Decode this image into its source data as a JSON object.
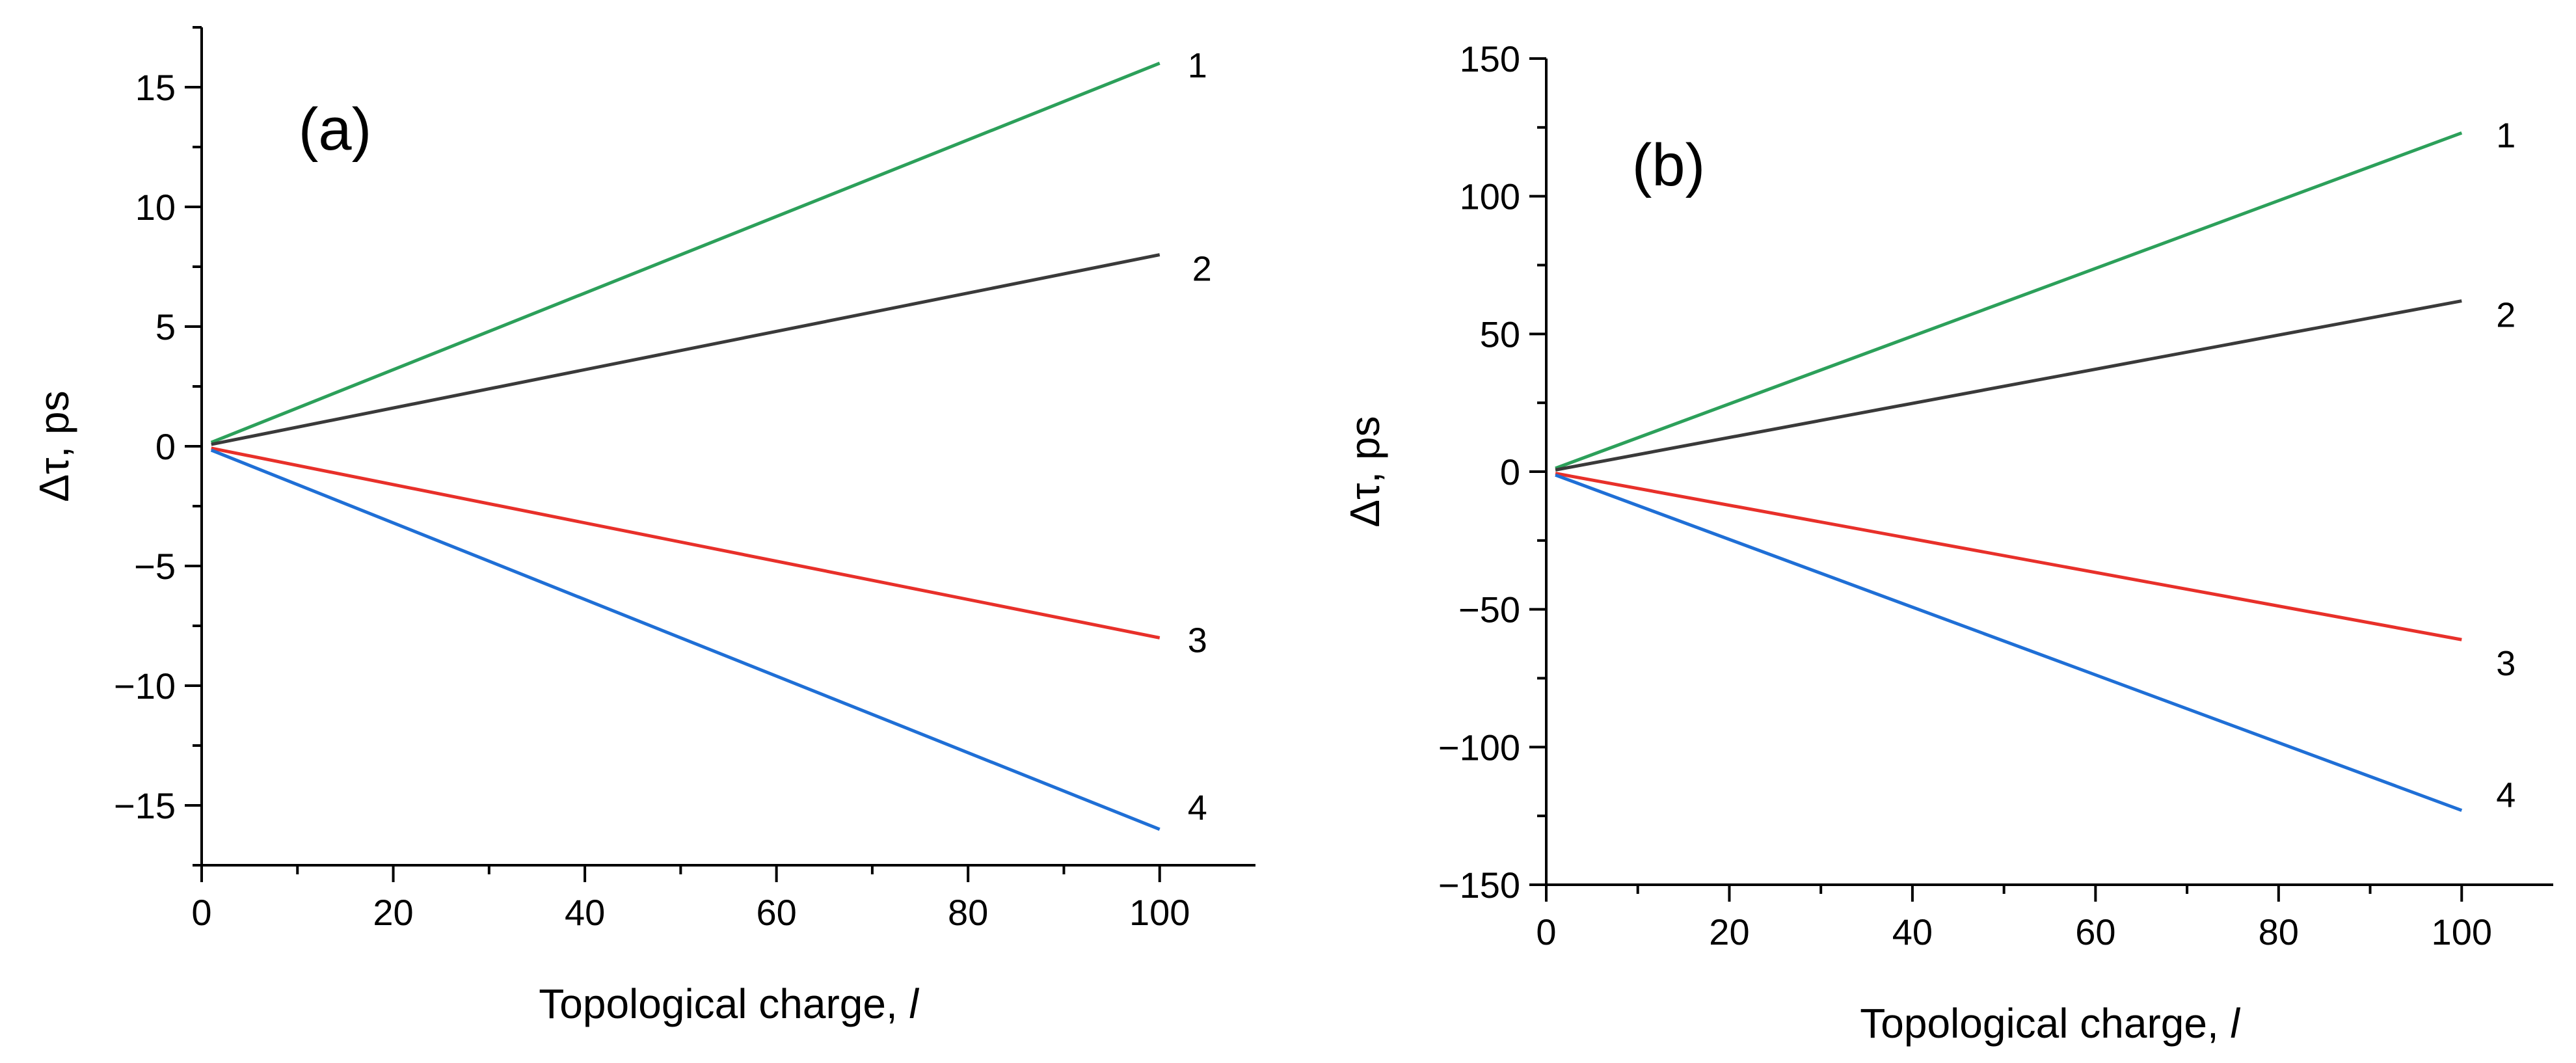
{
  "chart_data": [
    {
      "type": "line",
      "panel_label": "(a)",
      "xlabel": "Topological charge, ",
      "xlabel_var": "l",
      "ylabel": "Δτ, ps",
      "xlim": [
        0,
        110
      ],
      "ylim": [
        -17.5,
        17.5
      ],
      "xticks": [
        0,
        20,
        40,
        60,
        80,
        100
      ],
      "xtick_labels": [
        "0",
        "20",
        "40",
        "60",
        "80",
        "100"
      ],
      "yticks": [
        15,
        10,
        5,
        0,
        -5,
        -10,
        -15
      ],
      "ytick_labels": [
        "15",
        "10",
        "5",
        "0",
        "−5",
        "−10",
        "−15"
      ],
      "series": [
        {
          "name": "1",
          "x": [
            1,
            100
          ],
          "values": [
            0.16,
            16
          ],
          "color": "#2ca05a"
        },
        {
          "name": "2",
          "x": [
            1,
            100
          ],
          "values": [
            0.08,
            8
          ],
          "color": "#3a3a3a"
        },
        {
          "name": "3",
          "x": [
            1,
            100
          ],
          "values": [
            -0.08,
            -8
          ],
          "color": "#e8302a"
        },
        {
          "name": "4",
          "x": [
            1,
            100
          ],
          "values": [
            -0.16,
            -16
          ],
          "color": "#1f6fd6"
        }
      ]
    },
    {
      "type": "line",
      "panel_label": "(b)",
      "xlabel": "Topological charge, ",
      "xlabel_var": "l",
      "ylabel": "Δτ, ps",
      "xlim": [
        0,
        110
      ],
      "ylim": [
        -150,
        150
      ],
      "xticks": [
        0,
        20,
        40,
        60,
        80,
        100
      ],
      "xtick_labels": [
        "0",
        "20",
        "40",
        "60",
        "80",
        "100"
      ],
      "yticks": [
        150,
        100,
        50,
        0,
        -50,
        -100,
        -150
      ],
      "ytick_labels": [
        "150",
        "100",
        "50",
        "0",
        "−50",
        "−100",
        "−150"
      ],
      "series": [
        {
          "name": "1",
          "x": [
            1,
            100
          ],
          "values": [
            1.23,
            123
          ],
          "color": "#2ca05a"
        },
        {
          "name": "2",
          "x": [
            1,
            100
          ],
          "values": [
            0.62,
            62
          ],
          "color": "#3a3a3a"
        },
        {
          "name": "3",
          "x": [
            1,
            100
          ],
          "values": [
            -0.61,
            -61
          ],
          "color": "#e8302a"
        },
        {
          "name": "4",
          "x": [
            1,
            100
          ],
          "values": [
            -1.23,
            -123
          ],
          "color": "#1f6fd6"
        }
      ]
    }
  ]
}
